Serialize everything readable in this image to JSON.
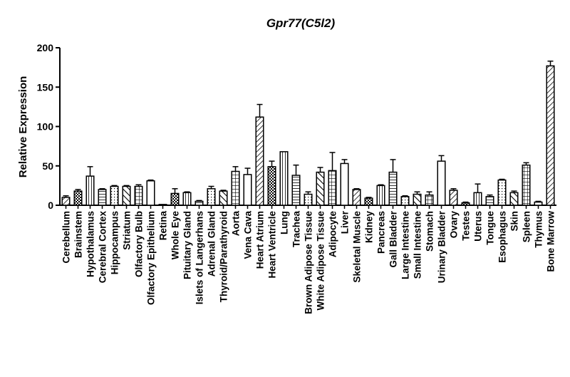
{
  "chart_data": {
    "type": "bar",
    "title": "Gpr77(C5l2)",
    "ylabel": "Relative Expression",
    "xlabel": "",
    "ylim": [
      0,
      200
    ],
    "yticks": [
      0,
      50,
      100,
      150,
      200
    ],
    "grid": false,
    "legend": "none",
    "categories": [
      "Cerebellum",
      "Brainstem",
      "Hypothalamus",
      "Cerebral Cortex",
      "Hippocampus",
      "Striatum",
      "Olfactory Bulb",
      "Olfactory Epithelium",
      "Retina",
      "Whole Eye",
      "Pituitary Gland",
      "Islets of Langerhans",
      "Adrenal Gland",
      "Thyroid/Parathyroid",
      "Aorta",
      "Vena Cava",
      "Heart Atrium",
      "Heart Ventricle",
      "Lung",
      "Trachea",
      "Brown Adipose Tissue",
      "White Adipose Tissue",
      "Adipocyte",
      "Liver",
      "Skeletal Muscle",
      "Kidney",
      "Pancreas",
      "Gall Bladder",
      "Large Intestine",
      "Small Intestine",
      "Stomach",
      "Urinary Bladder",
      "Ovary",
      "Testes",
      "Uterus",
      "Tongue",
      "Esophagus",
      "Skin",
      "Spleen",
      "Thymus",
      "Bone Marrow"
    ],
    "values": [
      10,
      18,
      37,
      20,
      24,
      24,
      24,
      31,
      1,
      15,
      16,
      5,
      21,
      18,
      43,
      39,
      112,
      49,
      68,
      38,
      14,
      42,
      44,
      53,
      20,
      9,
      25,
      42,
      11,
      14,
      13,
      56,
      19,
      3,
      16,
      11,
      32,
      16,
      51,
      4,
      177
    ],
    "errors": [
      2,
      2,
      12,
      1,
      1,
      1,
      2,
      1,
      0,
      6,
      1,
      1,
      3,
      1,
      6,
      8,
      16,
      7,
      0,
      13,
      3,
      6,
      23,
      5,
      1,
      1,
      1,
      16,
      1,
      3,
      4,
      7,
      2,
      1,
      11,
      2,
      1,
      2,
      3,
      1,
      6
    ]
  }
}
